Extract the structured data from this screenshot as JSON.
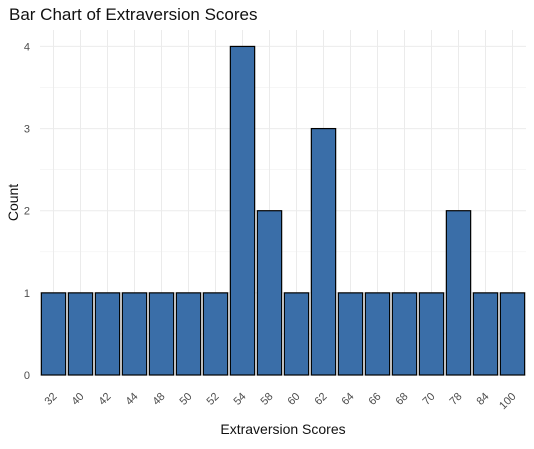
{
  "chart_data": {
    "type": "bar",
    "title": "Bar Chart of Extraversion Scores",
    "xlabel": "Extraversion Scores",
    "ylabel": "Count",
    "categories": [
      "32",
      "40",
      "42",
      "44",
      "48",
      "50",
      "52",
      "54",
      "58",
      "60",
      "62",
      "64",
      "66",
      "68",
      "70",
      "78",
      "84",
      "100"
    ],
    "values": [
      1,
      1,
      1,
      1,
      1,
      1,
      1,
      4,
      2,
      1,
      3,
      1,
      1,
      1,
      1,
      2,
      1,
      1
    ],
    "yticks": [
      0,
      1,
      2,
      3,
      4
    ],
    "ylim": [
      0,
      4.2
    ],
    "grid": true,
    "bar_color": "#3a6ea8",
    "bar_edge_color": "#000000"
  }
}
